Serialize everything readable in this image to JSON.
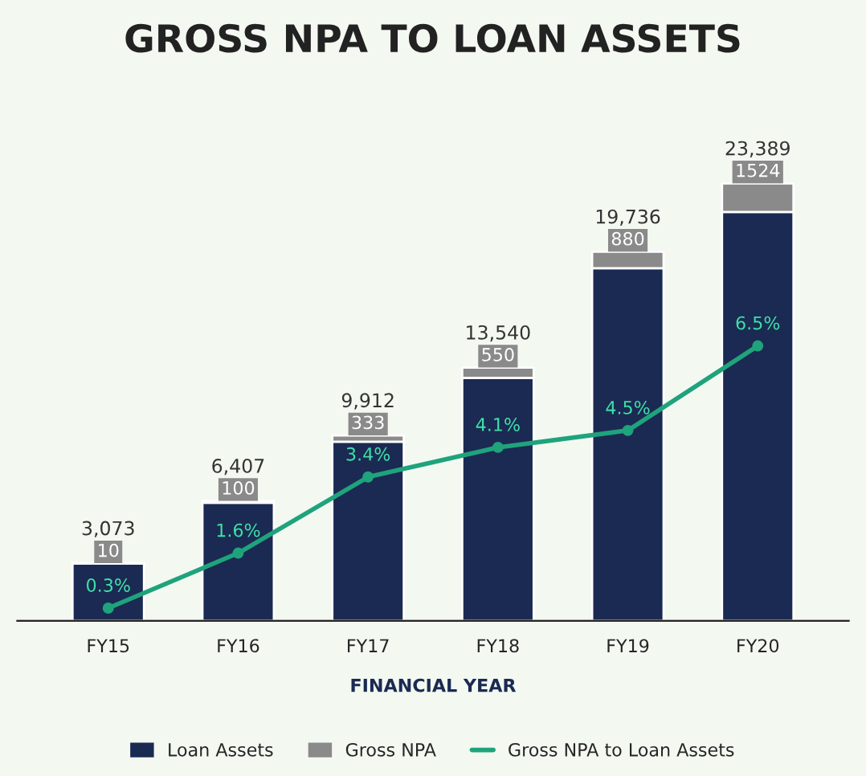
{
  "chart_data": {
    "type": "bar",
    "title": "GROSS NPA TO LOAN ASSETS",
    "xlabel": "FINANCIAL YEAR",
    "categories": [
      "FY15",
      "FY16",
      "FY17",
      "FY18",
      "FY19",
      "FY20"
    ],
    "stacked": true,
    "series": [
      {
        "name": "Loan Assets",
        "color": "#1b2a52",
        "values": [
          3063,
          6307,
          9579,
          12990,
          18856,
          21865
        ]
      },
      {
        "name": "Gross NPA",
        "color": "#8a8a8a",
        "values": [
          10,
          100,
          333,
          550,
          880,
          1524
        ],
        "value_labels": [
          "10",
          "100",
          "333",
          "550",
          "880",
          "1524"
        ]
      },
      {
        "name": "Gross NPA to Loan Assets",
        "type": "line",
        "axis": "y2",
        "color": "#1fa37c",
        "marker": "circle",
        "values": [
          0.3,
          1.6,
          3.4,
          4.1,
          4.5,
          6.5
        ],
        "value_labels": [
          "0.3%",
          "1.6%",
          "3.4%",
          "4.1%",
          "4.5%",
          "6.5%"
        ]
      }
    ],
    "totals": [
      "3,073",
      "6,407",
      "9,912",
      "13,540",
      "19,736",
      "23,389"
    ],
    "tick_labels": "x",
    "grid": false,
    "legend": "bottom"
  }
}
